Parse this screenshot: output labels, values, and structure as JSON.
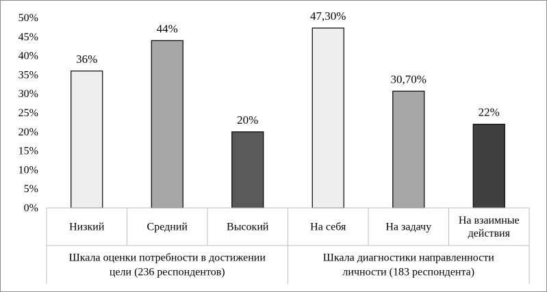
{
  "chart_data": {
    "type": "bar",
    "title": "",
    "xlabel": "",
    "ylabel": "",
    "ylim": [
      0,
      50
    ],
    "ytick_step": 5,
    "ytick_suffix": "%",
    "grid": false,
    "legend": "none",
    "categories": [
      "Низкий",
      "Средний",
      "Высокий",
      "На себя",
      "На задачу",
      "На взаимные действия"
    ],
    "category_lines": [
      [
        "Низкий"
      ],
      [
        "Средний"
      ],
      [
        "Высокий"
      ],
      [
        "На себя"
      ],
      [
        "На задачу"
      ],
      [
        "На взаимные",
        "действия"
      ]
    ],
    "values": [
      36,
      44,
      20,
      47.3,
      30.7,
      22
    ],
    "data_labels": [
      "36%",
      "44%",
      "20%",
      "47,30%",
      "30,70%",
      "22%"
    ],
    "bar_colors": [
      "#eeeeee",
      "#a6a6a6",
      "#595959",
      "#eeeeee",
      "#a6a6a6",
      "#404040"
    ],
    "groups": [
      {
        "lines": [
          "Шкала оценки потребности в достижении",
          "цели (236 респондентов)"
        ],
        "start": 0,
        "count": 3
      },
      {
        "lines": [
          "Шкала диагностики направленности",
          "личности (183 респондента)"
        ],
        "start": 3,
        "count": 3
      }
    ]
  }
}
